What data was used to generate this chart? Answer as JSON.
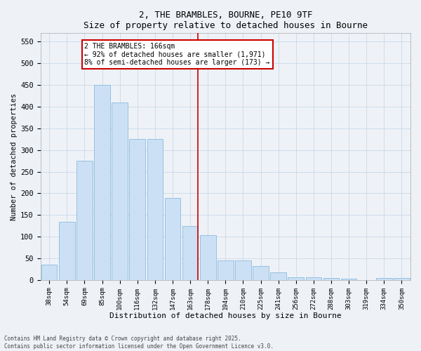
{
  "title": "2, THE BRAMBLES, BOURNE, PE10 9TF",
  "subtitle": "Size of property relative to detached houses in Bourne",
  "xlabel": "Distribution of detached houses by size in Bourne",
  "ylabel": "Number of detached properties",
  "categories": [
    "38sqm",
    "54sqm",
    "69sqm",
    "85sqm",
    "100sqm",
    "116sqm",
    "132sqm",
    "147sqm",
    "163sqm",
    "178sqm",
    "194sqm",
    "210sqm",
    "225sqm",
    "241sqm",
    "256sqm",
    "272sqm",
    "288sqm",
    "303sqm",
    "319sqm",
    "334sqm",
    "350sqm"
  ],
  "values": [
    35,
    135,
    275,
    450,
    410,
    325,
    325,
    190,
    125,
    103,
    45,
    45,
    32,
    18,
    7,
    7,
    5,
    3,
    0,
    5,
    5
  ],
  "bar_color": "#cce0f5",
  "bar_edge_color": "#7ab0d8",
  "annotation_text_line1": "2 THE BRAMBLES: 166sqm",
  "annotation_text_line2": "← 92% of detached houses are smaller (1,971)",
  "annotation_text_line3": "8% of semi-detached houses are larger (173) →",
  "annotation_box_color": "#ffffff",
  "annotation_box_edge_color": "#cc0000",
  "vline_color": "#cc0000",
  "vline_bar_index": 8,
  "ylim": [
    0,
    570
  ],
  "yticks": [
    0,
    50,
    100,
    150,
    200,
    250,
    300,
    350,
    400,
    450,
    500,
    550
  ],
  "grid_color": "#c8d8e8",
  "background_color": "#eef2f7",
  "footer_line1": "Contains HM Land Registry data © Crown copyright and database right 2025.",
  "footer_line2": "Contains public sector information licensed under the Open Government Licence v3.0."
}
